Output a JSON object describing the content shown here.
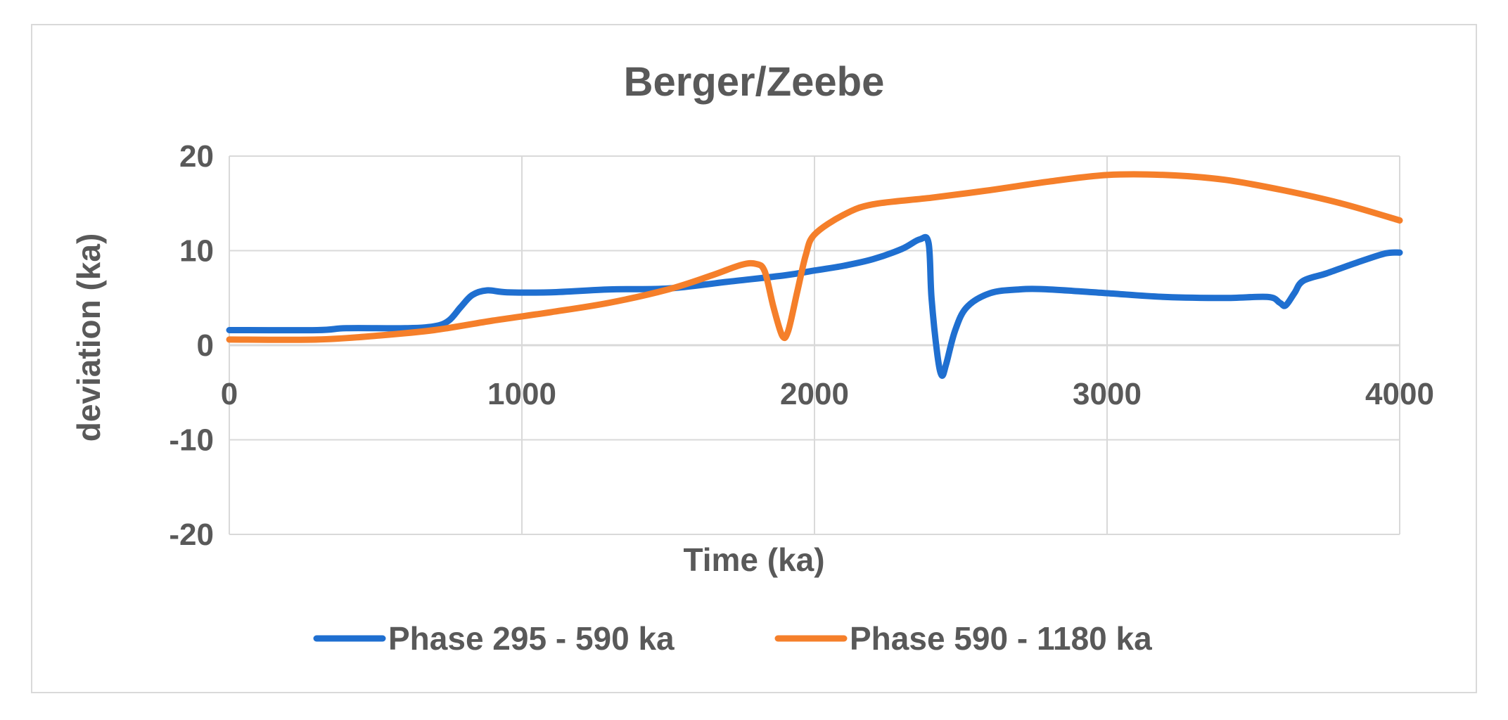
{
  "chart_data": {
    "type": "line",
    "title": "Berger/Zeebe",
    "xlabel": "Time (ka)",
    "ylabel": "deviation (ka)",
    "xlim": [
      0,
      4000
    ],
    "ylim": [
      -20,
      20
    ],
    "x_ticks": [
      0,
      1000,
      2000,
      3000,
      4000
    ],
    "y_ticks": [
      20,
      10,
      0,
      -10,
      -20
    ],
    "x_tick_labels": [
      "0",
      "1000",
      "2000",
      "3000",
      "4000"
    ],
    "y_tick_labels": [
      "20",
      "10",
      "0",
      "-10",
      "-20"
    ],
    "grid": true,
    "legend_position": "bottom",
    "series": [
      {
        "name": "Phase 295 - 590 ka",
        "color": "#1f6fd0",
        "points": [
          [
            0,
            1.6
          ],
          [
            300,
            1.6
          ],
          [
            400,
            1.8
          ],
          [
            600,
            1.8
          ],
          [
            700,
            2.0
          ],
          [
            750,
            2.6
          ],
          [
            790,
            4.0
          ],
          [
            830,
            5.3
          ],
          [
            880,
            5.8
          ],
          [
            950,
            5.6
          ],
          [
            1100,
            5.6
          ],
          [
            1300,
            5.9
          ],
          [
            1500,
            6.0
          ],
          [
            1700,
            6.7
          ],
          [
            1900,
            7.4
          ],
          [
            2000,
            7.9
          ],
          [
            2100,
            8.4
          ],
          [
            2200,
            9.1
          ],
          [
            2300,
            10.2
          ],
          [
            2360,
            11.2
          ],
          [
            2390,
            10.8
          ],
          [
            2400,
            5.0
          ],
          [
            2420,
            -1.0
          ],
          [
            2435,
            -3.2
          ],
          [
            2450,
            -2.0
          ],
          [
            2480,
            1.5
          ],
          [
            2520,
            4.0
          ],
          [
            2600,
            5.5
          ],
          [
            2700,
            5.9
          ],
          [
            2800,
            5.9
          ],
          [
            3000,
            5.5
          ],
          [
            3200,
            5.1
          ],
          [
            3400,
            5.0
          ],
          [
            3550,
            5.1
          ],
          [
            3590,
            4.5
          ],
          [
            3610,
            4.2
          ],
          [
            3640,
            5.5
          ],
          [
            3670,
            6.8
          ],
          [
            3750,
            7.6
          ],
          [
            3850,
            8.7
          ],
          [
            3950,
            9.7
          ],
          [
            4000,
            9.8
          ]
        ]
      },
      {
        "name": "Phase 590 - 1180 ka",
        "color": "#f57f2a",
        "points": [
          [
            0,
            0.6
          ],
          [
            300,
            0.6
          ],
          [
            500,
            1.0
          ],
          [
            700,
            1.6
          ],
          [
            900,
            2.6
          ],
          [
            1100,
            3.5
          ],
          [
            1300,
            4.5
          ],
          [
            1500,
            5.9
          ],
          [
            1650,
            7.4
          ],
          [
            1750,
            8.5
          ],
          [
            1800,
            8.6
          ],
          [
            1830,
            7.8
          ],
          [
            1860,
            4.0
          ],
          [
            1890,
            1.0
          ],
          [
            1910,
            1.5
          ],
          [
            1940,
            5.5
          ],
          [
            1970,
            9.5
          ],
          [
            2000,
            11.7
          ],
          [
            2100,
            13.8
          ],
          [
            2200,
            14.9
          ],
          [
            2400,
            15.6
          ],
          [
            2600,
            16.4
          ],
          [
            2800,
            17.3
          ],
          [
            3000,
            18.0
          ],
          [
            3200,
            18.0
          ],
          [
            3400,
            17.5
          ],
          [
            3600,
            16.4
          ],
          [
            3800,
            15.0
          ],
          [
            4000,
            13.2
          ]
        ]
      }
    ]
  }
}
